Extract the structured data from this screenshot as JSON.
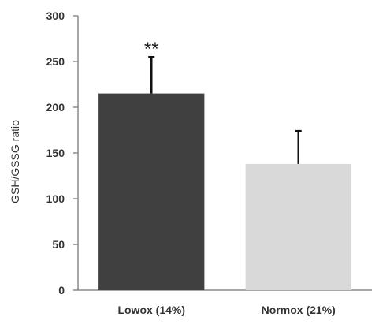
{
  "chart_data": {
    "type": "bar",
    "title": "",
    "xlabel": "",
    "ylabel": "GSH/GSSG ratio",
    "ylim": [
      0,
      300
    ],
    "yticks": [
      0,
      50,
      100,
      150,
      200,
      250,
      300
    ],
    "categories": [
      "Lowox (14%)",
      "Normox (21%)"
    ],
    "values": [
      215,
      138
    ],
    "error_upper": [
      255,
      174
    ],
    "bar_colors": [
      "#404040",
      "#d9d9d9"
    ],
    "annotations": [
      {
        "category": "Lowox (14%)",
        "text": "**"
      }
    ],
    "grid": false,
    "legend": "none"
  }
}
